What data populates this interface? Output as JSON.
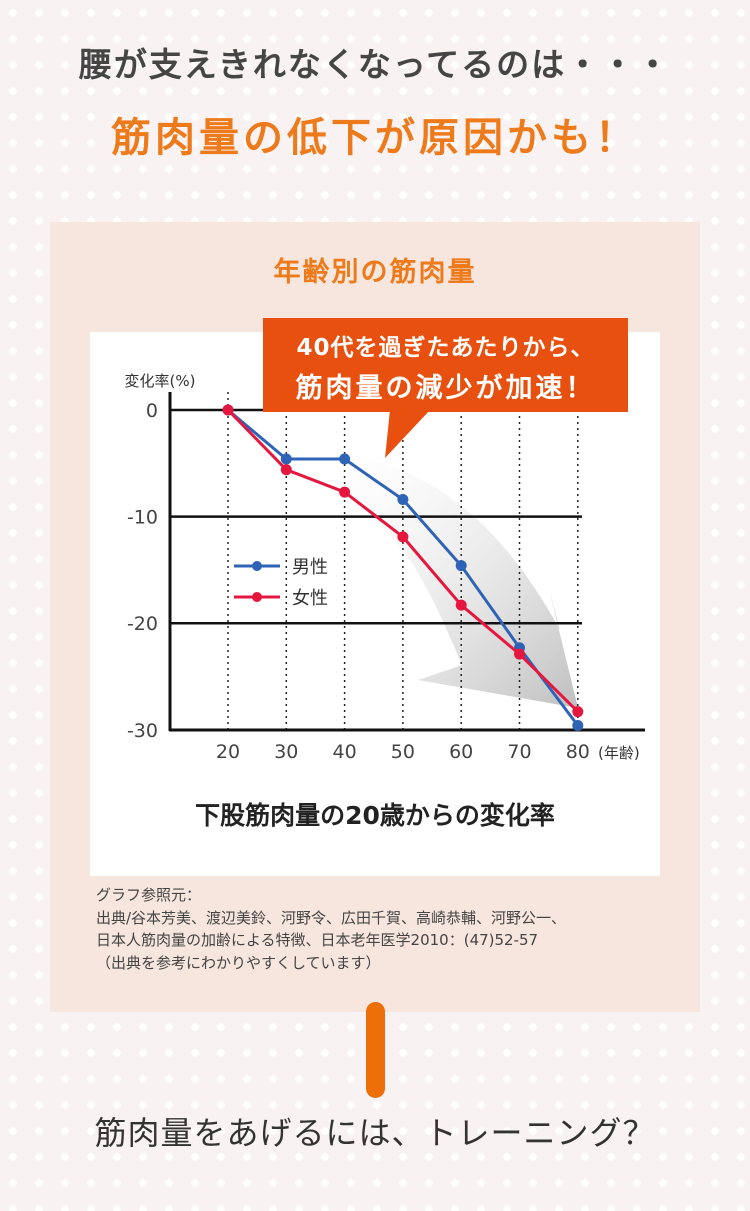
{
  "header": {
    "line1": "腰が支えきれなくなってるのは・・・",
    "line2": "筋肉量の低下が原因かも！"
  },
  "panel": {
    "title": "年齢別の筋肉量",
    "callout_line1": "40代を過ぎたあたりから、",
    "callout_line2": "筋肉量の減少が加速！",
    "subtitle": "下股筋肉量の20歳からの変化率",
    "source_lines": [
      "グラフ参照元：",
      "出典/谷本芳美、渡辺美鈴、河野令、広田千賀、高崎恭輔、河野公一、",
      "日本人筋肉量の加齢による特徴、日本老年医学2010：(47)52-57",
      "（出典を参考にわかりやすくしています）"
    ]
  },
  "footer": {
    "question": "筋肉量をあげるには、トレーニング？"
  },
  "colors": {
    "accent": "#ee7b1b",
    "callout": "#e8500f",
    "male": "#2f63b5",
    "female": "#e5173f"
  },
  "chart_data": {
    "type": "line",
    "ylabel": "変化率(%)",
    "xlabel": "(年齢)",
    "x": [
      20,
      30,
      40,
      50,
      60,
      70,
      80
    ],
    "x_tick_labels": [
      "20",
      "30",
      "40",
      "50",
      "60",
      "70",
      "80"
    ],
    "y_tick_labels": [
      "0",
      "-10",
      "-20",
      "-30"
    ],
    "y_ticks": [
      0,
      -10,
      -20,
      -30
    ],
    "ylim": [
      -30,
      0
    ],
    "grid": "horizontal solid at -10,-20; vertical dotted at each age",
    "legend": "center-left",
    "series": [
      {
        "name": "男性",
        "color": "#2f63b5",
        "values": [
          0,
          -4.6,
          -4.6,
          -8.4,
          -14.6,
          -22.3,
          -29.6
        ]
      },
      {
        "name": "女性",
        "color": "#e5173f",
        "values": [
          0,
          -5.6,
          -7.7,
          -11.9,
          -18.3,
          -22.9,
          -28.3
        ]
      }
    ]
  }
}
